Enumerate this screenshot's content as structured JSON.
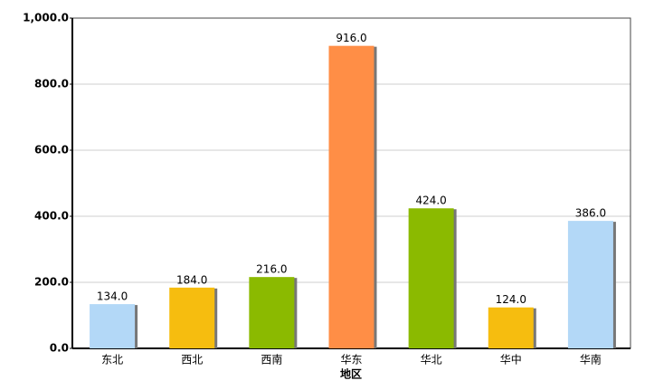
{
  "chart_data": {
    "type": "bar",
    "xlabel": "地区",
    "categories": [
      "东北",
      "西北",
      "西南",
      "华东",
      "华北",
      "华中",
      "华南"
    ],
    "values": [
      134,
      184,
      216,
      916,
      424,
      124,
      386
    ],
    "value_labels": [
      "134.0",
      "184.0",
      "216.0",
      "916.0",
      "424.0",
      "124.0",
      "386.0"
    ],
    "colors": [
      "#b3d8f7",
      "#f6bd0f",
      "#8bba00",
      "#ff8e46",
      "#8bba00",
      "#f6bd0f",
      "#b3d8f7"
    ],
    "ylim": [
      0,
      1000
    ],
    "yticks": [
      {
        "value": 0,
        "label": "0.0"
      },
      {
        "value": 200,
        "label": "200.0"
      },
      {
        "value": 400,
        "label": "400.0"
      },
      {
        "value": 600,
        "label": "600.0"
      },
      {
        "value": 800,
        "label": "800.0"
      },
      {
        "value": 1000,
        "label": "1,000.0"
      }
    ],
    "grid": true
  }
}
